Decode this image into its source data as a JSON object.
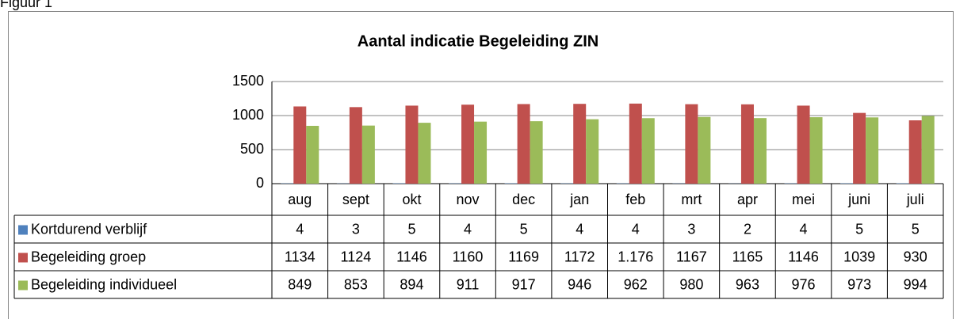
{
  "figure_label": "Figuur 1",
  "chart_data": {
    "type": "bar",
    "title": "Aantal indicatie Begeleiding ZIN",
    "categories": [
      "aug",
      "sept",
      "okt",
      "nov",
      "dec",
      "jan",
      "feb",
      "mrt",
      "apr",
      "mei",
      "juni",
      "juli"
    ],
    "series": [
      {
        "name": "Kortdurend verblijf",
        "color": "#4f81bd",
        "values": [
          4,
          3,
          5,
          4,
          5,
          4,
          4,
          3,
          2,
          4,
          5,
          5
        ]
      },
      {
        "name": "Begeleiding groep",
        "color": "#c0504d",
        "values": [
          1134,
          1124,
          1146,
          1160,
          1169,
          1172,
          1176,
          1167,
          1165,
          1146,
          1039,
          930
        ],
        "value_labels": [
          "1134",
          "1124",
          "1146",
          "1160",
          "1169",
          "1172",
          "1.176",
          "1167",
          "1165",
          "1146",
          "1039",
          "930"
        ]
      },
      {
        "name": "Begeleiding individueel",
        "color": "#9bbb59",
        "values": [
          849,
          853,
          894,
          911,
          917,
          946,
          962,
          980,
          963,
          976,
          973,
          994
        ]
      }
    ],
    "ylim": [
      0,
      1500
    ],
    "yticks": [
      0,
      500,
      1000,
      1500
    ],
    "grid": true
  }
}
